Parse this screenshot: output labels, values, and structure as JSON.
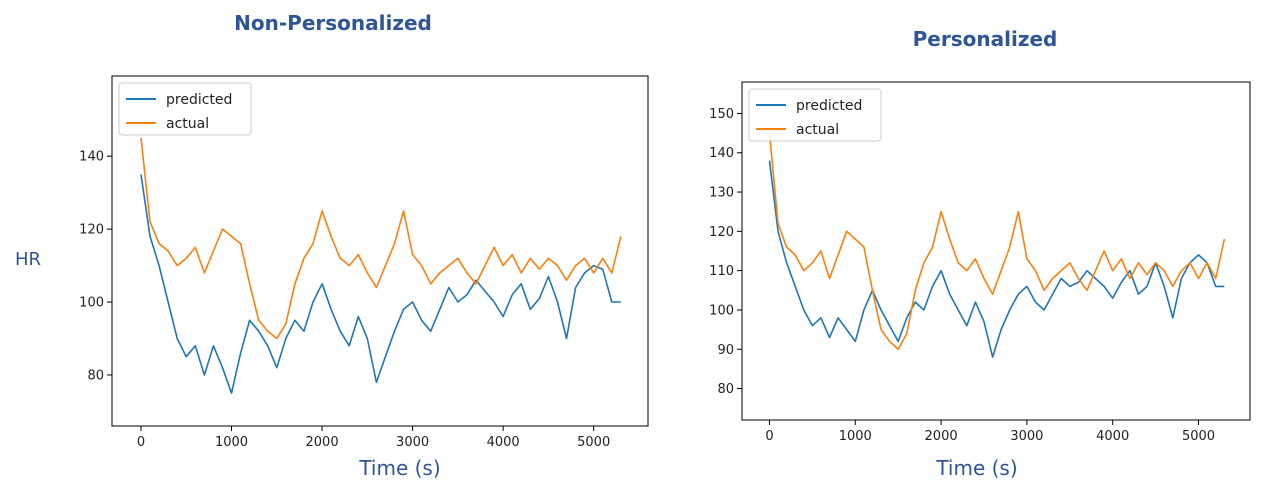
{
  "figure": {
    "shared_ylabel": "HR",
    "left_title": "Non-Personalized",
    "right_title": "Personalized",
    "left_xlabel": "Time (s)",
    "right_xlabel": "Time (s)"
  },
  "colors": {
    "title_text": "#2F5597",
    "predicted": "#1f77b4",
    "actual": "#ff7f0e",
    "axis": "#000000"
  },
  "chart_data": [
    {
      "type": "line",
      "title": "Non-Personalized",
      "xlabel": "Time (s)",
      "ylabel": "HR",
      "xlim": [
        -320,
        5600
      ],
      "ylim": [
        66,
        162
      ],
      "xticks": [
        0,
        1000,
        2000,
        3000,
        4000,
        5000
      ],
      "yticks": [
        80,
        100,
        120,
        140
      ],
      "legend": {
        "placement": "top-left",
        "entries": [
          "predicted",
          "actual"
        ]
      },
      "series": [
        {
          "name": "predicted",
          "x": [
            0,
            100,
            200,
            300,
            400,
            500,
            600,
            700,
            800,
            900,
            1000,
            1100,
            1200,
            1300,
            1400,
            1500,
            1600,
            1700,
            1800,
            1900,
            2000,
            2100,
            2200,
            2300,
            2400,
            2500,
            2600,
            2700,
            2800,
            2900,
            3000,
            3100,
            3200,
            3300,
            3400,
            3500,
            3600,
            3700,
            3800,
            3900,
            4000,
            4100,
            4200,
            4300,
            4400,
            4500,
            4600,
            4700,
            4800,
            4900,
            5000,
            5100,
            5200,
            5300
          ],
          "values": [
            135,
            118,
            110,
            100,
            90,
            85,
            88,
            80,
            88,
            82,
            75,
            86,
            95,
            92,
            88,
            82,
            90,
            95,
            92,
            100,
            105,
            98,
            92,
            88,
            96,
            90,
            78,
            85,
            92,
            98,
            100,
            95,
            92,
            98,
            104,
            100,
            102,
            106,
            103,
            100,
            96,
            102,
            105,
            98,
            101,
            107,
            100,
            90,
            104,
            108,
            110,
            109,
            100,
            100
          ]
        },
        {
          "name": "actual",
          "x": [
            0,
            100,
            200,
            300,
            400,
            500,
            600,
            700,
            800,
            900,
            1000,
            1100,
            1200,
            1300,
            1400,
            1500,
            1600,
            1700,
            1800,
            1900,
            2000,
            2100,
            2200,
            2300,
            2400,
            2500,
            2600,
            2700,
            2800,
            2900,
            3000,
            3100,
            3200,
            3300,
            3400,
            3500,
            3600,
            3700,
            3800,
            3900,
            4000,
            4100,
            4200,
            4300,
            4400,
            4500,
            4600,
            4700,
            4800,
            4900,
            5000,
            5100,
            5200,
            5300
          ],
          "values": [
            145,
            122,
            116,
            114,
            110,
            112,
            115,
            108,
            114,
            120,
            118,
            116,
            105,
            95,
            92,
            90,
            94,
            105,
            112,
            116,
            125,
            118,
            112,
            110,
            113,
            108,
            104,
            110,
            116,
            125,
            113,
            110,
            105,
            108,
            110,
            112,
            108,
            105,
            110,
            115,
            110,
            113,
            108,
            112,
            109,
            112,
            110,
            106,
            110,
            112,
            108,
            112,
            108,
            118
          ]
        }
      ]
    },
    {
      "type": "line",
      "title": "Personalized",
      "xlabel": "Time (s)",
      "ylabel": "HR",
      "xlim": [
        -320,
        5600
      ],
      "ylim": [
        72,
        158
      ],
      "xticks": [
        0,
        1000,
        2000,
        3000,
        4000,
        5000
      ],
      "yticks": [
        80,
        90,
        100,
        110,
        120,
        130,
        140,
        150
      ],
      "legend": {
        "placement": "top-left",
        "entries": [
          "predicted",
          "actual"
        ]
      },
      "series": [
        {
          "name": "predicted",
          "x": [
            0,
            100,
            200,
            300,
            400,
            500,
            600,
            700,
            800,
            900,
            1000,
            1100,
            1200,
            1300,
            1400,
            1500,
            1600,
            1700,
            1800,
            1900,
            2000,
            2100,
            2200,
            2300,
            2400,
            2500,
            2600,
            2700,
            2800,
            2900,
            3000,
            3100,
            3200,
            3300,
            3400,
            3500,
            3600,
            3700,
            3800,
            3900,
            4000,
            4100,
            4200,
            4300,
            4400,
            4500,
            4600,
            4700,
            4800,
            4900,
            5000,
            5100,
            5200,
            5300
          ],
          "values": [
            138,
            120,
            112,
            106,
            100,
            96,
            98,
            93,
            98,
            95,
            92,
            100,
            105,
            100,
            96,
            92,
            98,
            102,
            100,
            106,
            110,
            104,
            100,
            96,
            102,
            97,
            88,
            95,
            100,
            104,
            106,
            102,
            100,
            104,
            108,
            106,
            107,
            110,
            108,
            106,
            103,
            107,
            110,
            104,
            106,
            112,
            106,
            98,
            108,
            112,
            114,
            112,
            106,
            106
          ]
        },
        {
          "name": "actual",
          "x": [
            0,
            100,
            200,
            300,
            400,
            500,
            600,
            700,
            800,
            900,
            1000,
            1100,
            1200,
            1300,
            1400,
            1500,
            1600,
            1700,
            1800,
            1900,
            2000,
            2100,
            2200,
            2300,
            2400,
            2500,
            2600,
            2700,
            2800,
            2900,
            3000,
            3100,
            3200,
            3300,
            3400,
            3500,
            3600,
            3700,
            3800,
            3900,
            4000,
            4100,
            4200,
            4300,
            4400,
            4500,
            4600,
            4700,
            4800,
            4900,
            5000,
            5100,
            5200,
            5300
          ],
          "values": [
            145,
            122,
            116,
            114,
            110,
            112,
            115,
            108,
            114,
            120,
            118,
            116,
            105,
            95,
            92,
            90,
            94,
            105,
            112,
            116,
            125,
            118,
            112,
            110,
            113,
            108,
            104,
            110,
            116,
            125,
            113,
            110,
            105,
            108,
            110,
            112,
            108,
            105,
            110,
            115,
            110,
            113,
            108,
            112,
            109,
            112,
            110,
            106,
            110,
            112,
            108,
            112,
            108,
            118
          ]
        }
      ]
    }
  ]
}
